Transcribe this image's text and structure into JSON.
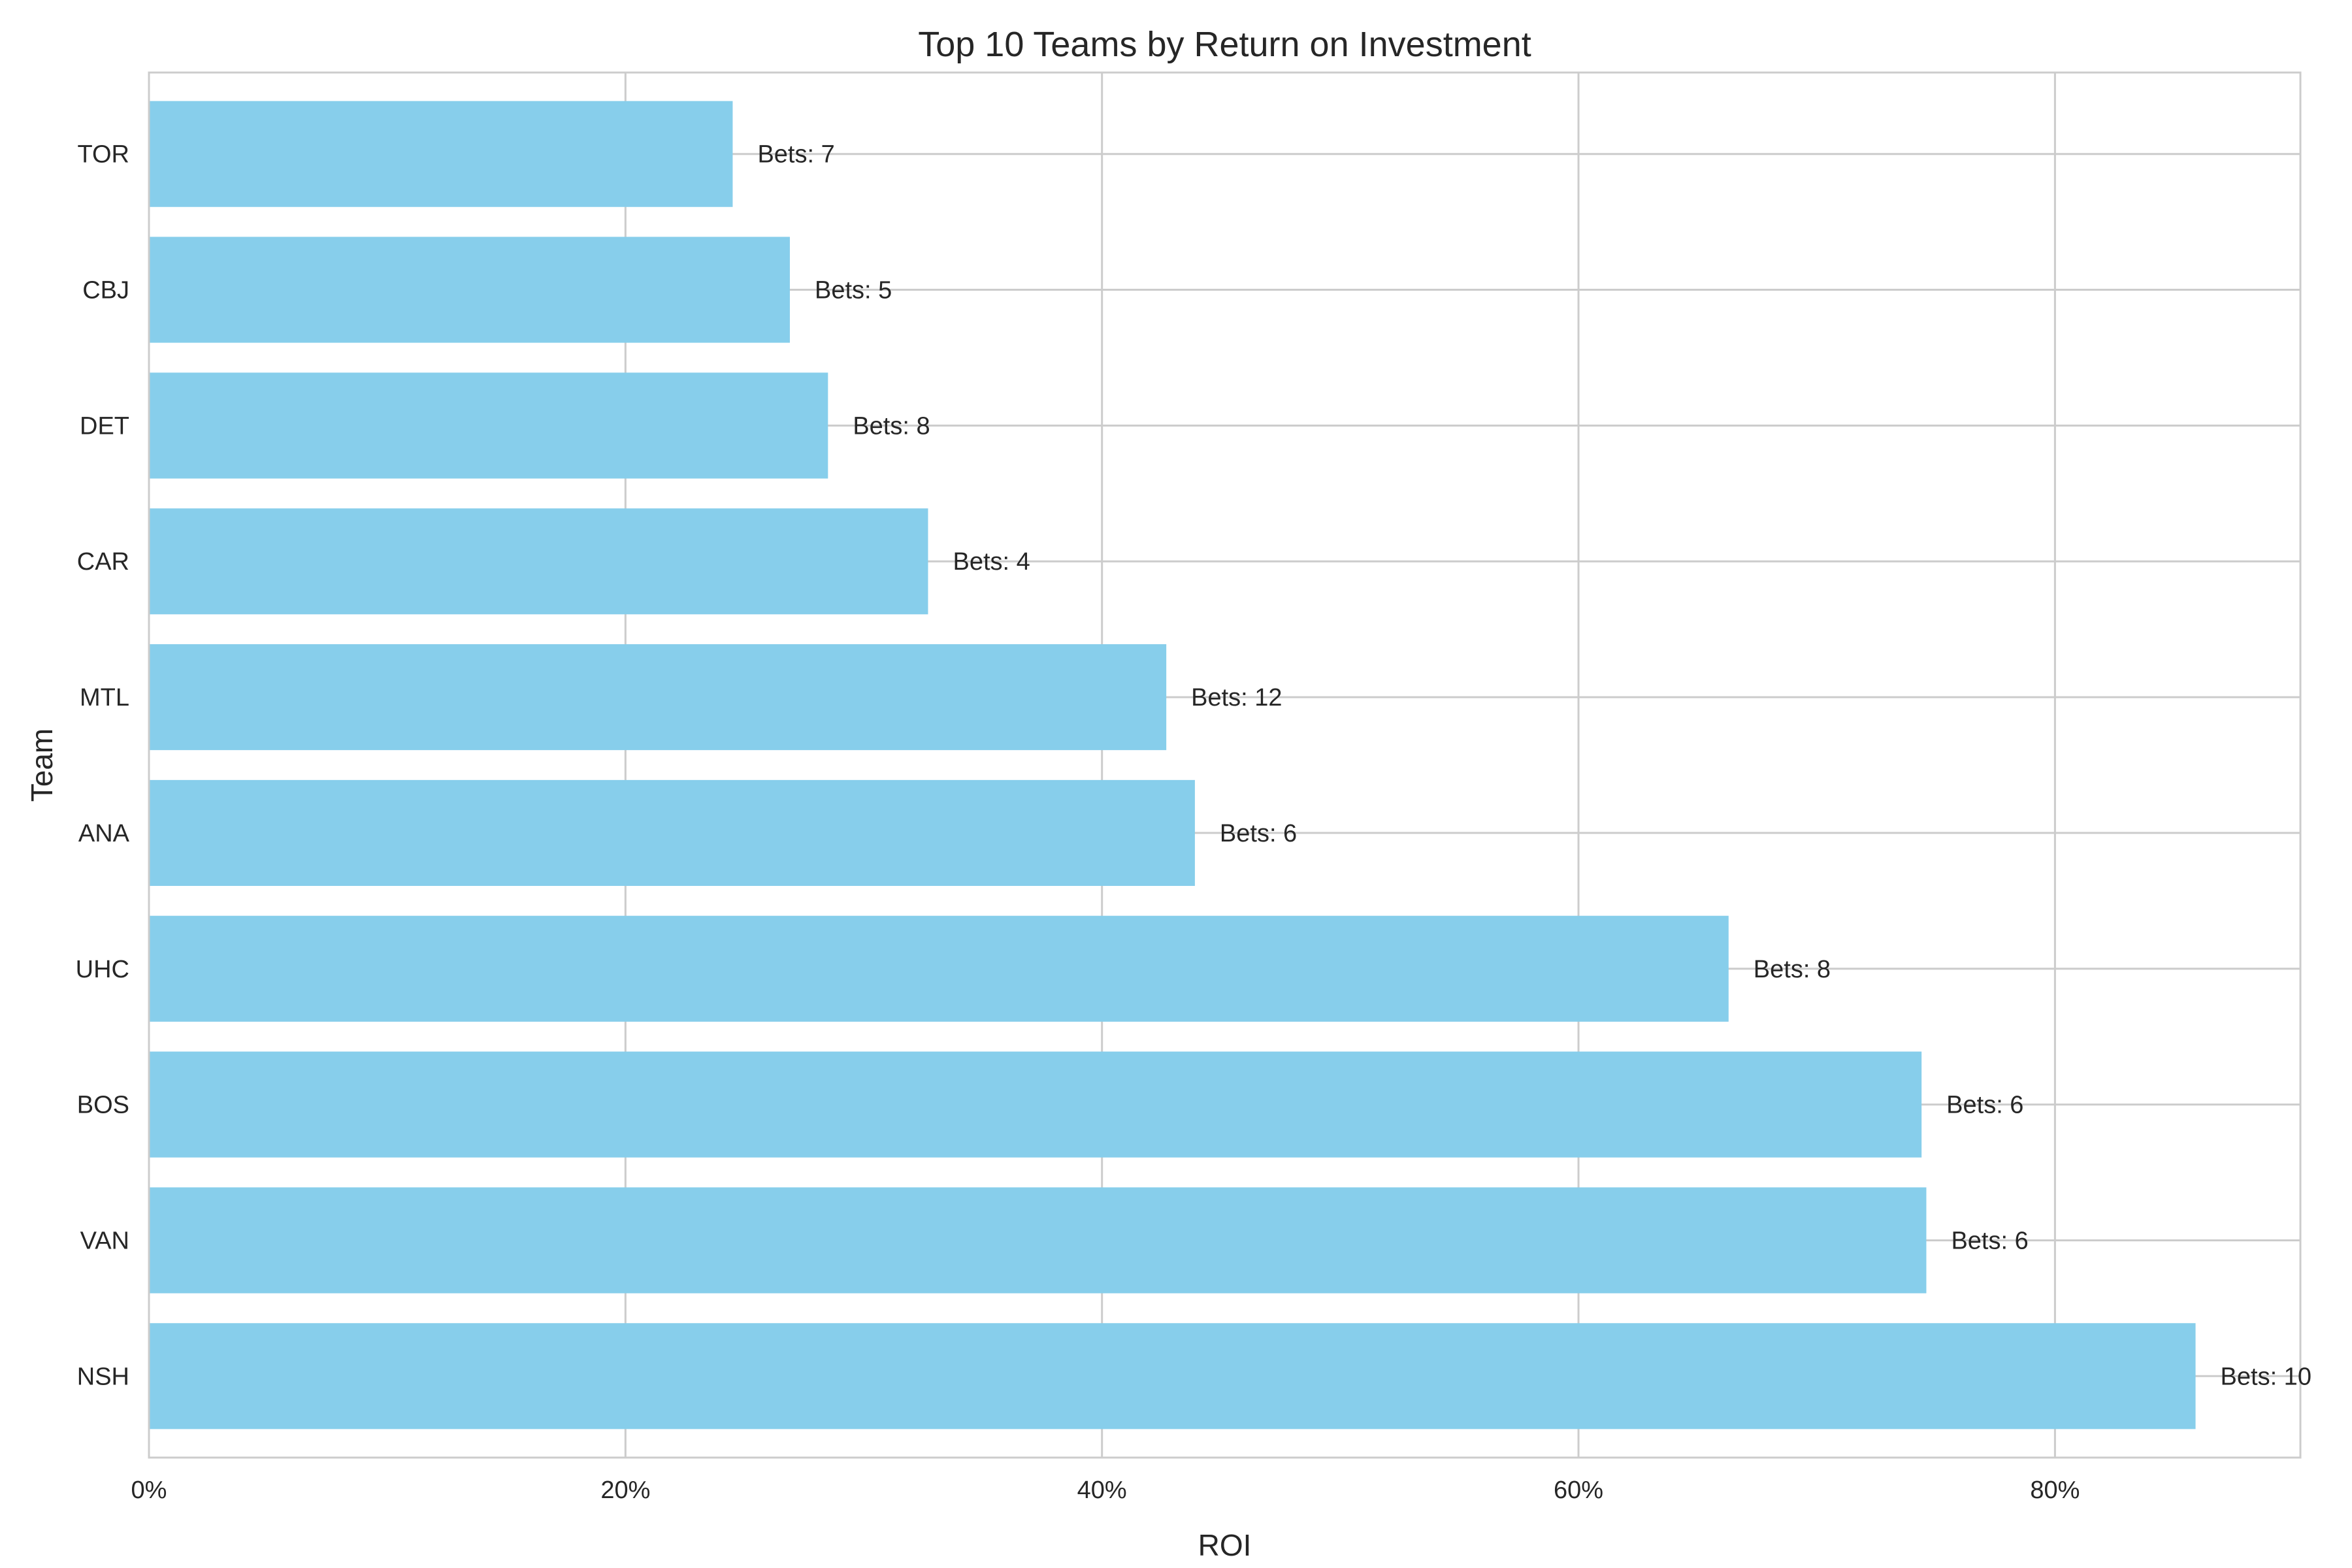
{
  "chart_data": {
    "type": "bar",
    "orientation": "horizontal",
    "title": "Top 10 Teams by Return on Investment",
    "xlabel": "ROI",
    "ylabel": "Team",
    "xlim": [
      0,
      0.903
    ],
    "xticks": [
      0,
      0.2,
      0.4,
      0.6,
      0.8
    ],
    "xtick_labels": [
      "0%",
      "20%",
      "40%",
      "60%",
      "80%"
    ],
    "grid": true,
    "bar_color": "#87CEEB",
    "categories": [
      "TOR",
      "CBJ",
      "DET",
      "CAR",
      "MTL",
      "ANA",
      "UHC",
      "BOS",
      "VAN",
      "NSH"
    ],
    "values": [
      0.245,
      0.269,
      0.285,
      0.327,
      0.427,
      0.439,
      0.663,
      0.744,
      0.746,
      0.859
    ],
    "bar_labels": [
      "Bets: 7",
      "Bets: 5",
      "Bets: 8",
      "Bets: 4",
      "Bets: 12",
      "Bets: 6",
      "Bets: 8",
      "Bets: 6",
      "Bets: 6",
      "Bets: 10"
    ]
  }
}
